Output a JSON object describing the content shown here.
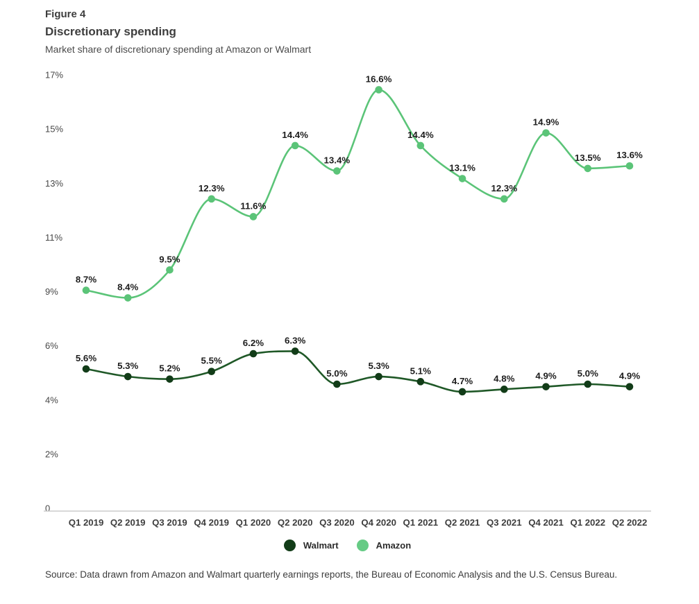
{
  "header": {
    "figure_label": "Figure 4",
    "title": "Discretionary spending",
    "subtitle": "Market share of discretionary spending at Amazon or Walmart"
  },
  "source": "Source: Data drawn from Amazon and Walmart quarterly earnings reports, the Bureau of Economic Analysis and the U.S. Census Bureau.",
  "legend": {
    "items": [
      {
        "label": "Walmart",
        "color": "#123c18"
      },
      {
        "label": "Amazon",
        "color": "#66cb85"
      }
    ]
  },
  "colors": {
    "walmart_line": "#1f5827",
    "walmart_point": "#123c18",
    "amazon_line": "#5bc478",
    "amazon_point": "#5bc478",
    "axis_line": "#cccccc",
    "value_label": "#1d1d1d",
    "tick_label": "#474747"
  },
  "chart_data": {
    "type": "line",
    "title": "Discretionary spending",
    "subtitle": "Market share of discretionary spending at Amazon or Walmart",
    "categories": [
      "Q1 2019",
      "Q2 2019",
      "Q3 2019",
      "Q4 2019",
      "Q1 2020",
      "Q2 2020",
      "Q3 2020",
      "Q4 2020",
      "Q1 2021",
      "Q2 2021",
      "Q3 2021",
      "Q4 2021",
      "Q1 2022",
      "Q2 2022"
    ],
    "series": [
      {
        "name": "Walmart",
        "line_color": "#1f5827",
        "point_color": "#123c18",
        "values": [
          5.6,
          5.3,
          5.2,
          5.5,
          6.2,
          6.3,
          5.0,
          5.3,
          5.1,
          4.7,
          4.8,
          4.9,
          5.0,
          4.9
        ]
      },
      {
        "name": "Amazon",
        "line_color": "#5bc478",
        "point_color": "#5bc478",
        "values": [
          8.7,
          8.4,
          9.5,
          12.3,
          11.6,
          14.4,
          13.4,
          16.6,
          14.4,
          13.1,
          12.3,
          14.9,
          13.5,
          13.6
        ]
      }
    ],
    "value_label_format": "{value:.1f}%",
    "y_axis": {
      "tick_labels": [
        "0",
        "2%",
        "4%",
        "6%",
        "9%",
        "11%",
        "13%",
        "15%",
        "17%"
      ],
      "range": [
        0,
        17
      ],
      "gridlines": false
    },
    "x_axis": {
      "baseline_shown": true
    },
    "legend_position": "bottom",
    "curve": "smooth"
  }
}
